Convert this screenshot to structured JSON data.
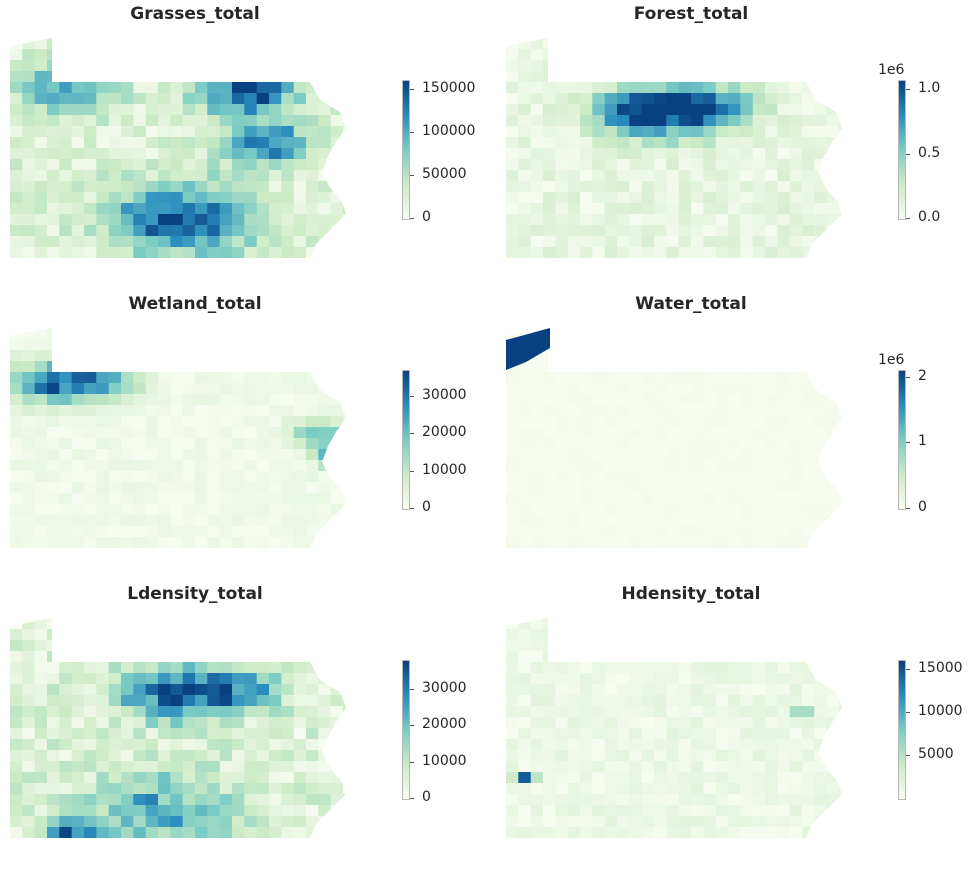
{
  "colormap": "GnBu",
  "colors": {
    "low": "#f7fcf0",
    "mid1": "#ccebc5",
    "mid2": "#7bccc4",
    "mid3": "#2b8cbe",
    "high": "#084081"
  },
  "panels": [
    {
      "title": "Grasses_total",
      "exponent": "",
      "ticks": [
        "150000",
        "100000",
        "50000",
        "0"
      ],
      "tick_values": [
        150000,
        100000,
        50000,
        0
      ],
      "vmin": 0,
      "vmax": 160000
    },
    {
      "title": "Forest_total",
      "exponent": "1e6",
      "ticks": [
        "1.0",
        "0.5",
        "0.0"
      ],
      "tick_values": [
        1.0,
        0.5,
        0.0
      ],
      "vmin": 0,
      "vmax": 1.07
    },
    {
      "title": "Wetland_total",
      "exponent": "",
      "ticks": [
        "30000",
        "20000",
        "10000",
        "0"
      ],
      "tick_values": [
        30000,
        20000,
        10000,
        0
      ],
      "vmin": 0,
      "vmax": 37000
    },
    {
      "title": "Water_total",
      "exponent": "1e6",
      "ticks": [
        "2",
        "1",
        "0"
      ],
      "tick_values": [
        2,
        1,
        0
      ],
      "vmin": 0,
      "vmax": 2.1
    },
    {
      "title": "Ldensity_total",
      "exponent": "",
      "ticks": [
        "30000",
        "20000",
        "10000",
        "0"
      ],
      "tick_values": [
        30000,
        20000,
        10000,
        0
      ],
      "vmin": 0,
      "vmax": 38000
    },
    {
      "title": "Hdensity_total",
      "exponent": "",
      "ticks": [
        "15000",
        "10000",
        "5000"
      ],
      "tick_values": [
        15000,
        10000,
        5000
      ],
      "vmin": 0,
      "vmax": 16000
    }
  ]
}
